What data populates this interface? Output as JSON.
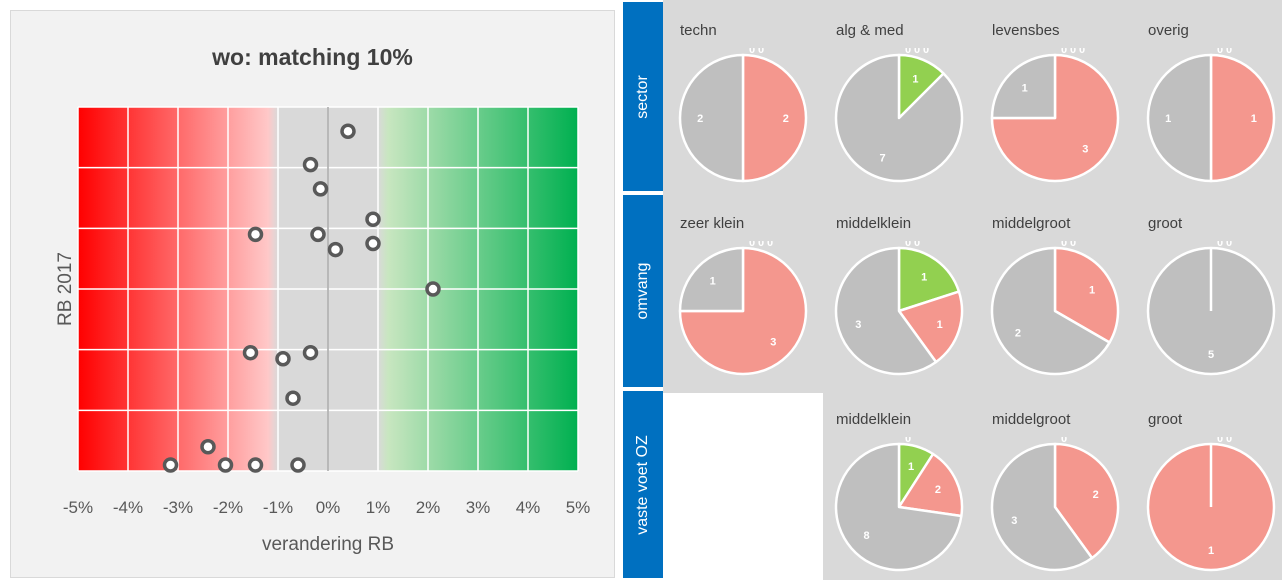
{
  "chart_data": [
    {
      "type": "scatter",
      "title": "wo: matching 10%",
      "xlabel": "verandering RB",
      "ylabel": "RB 2017",
      "xlim": [
        -5,
        5
      ],
      "x_tick_labels": [
        "-5%",
        "-4%",
        "-3%",
        "-2%",
        "-1%",
        "0%",
        "1%",
        "2%",
        "3%",
        "4%",
        "5%"
      ],
      "y_gridlines": 6,
      "background_gradient": {
        "negative_color": "#ff0000",
        "neutral_color": "#d9d9d9",
        "positive_color": "#00b050"
      },
      "points": [
        {
          "x": 0.4,
          "y": 5.6
        },
        {
          "x": -0.35,
          "y": 5.05
        },
        {
          "x": -0.15,
          "y": 4.65
        },
        {
          "x": 0.9,
          "y": 4.15
        },
        {
          "x": -1.45,
          "y": 3.9
        },
        {
          "x": -0.2,
          "y": 3.9
        },
        {
          "x": 0.9,
          "y": 3.75
        },
        {
          "x": 0.15,
          "y": 3.65
        },
        {
          "x": 2.1,
          "y": 3.0
        },
        {
          "x": -1.55,
          "y": 1.95
        },
        {
          "x": -0.9,
          "y": 1.85
        },
        {
          "x": -0.35,
          "y": 1.95
        },
        {
          "x": -0.7,
          "y": 1.2
        },
        {
          "x": -2.4,
          "y": 0.4
        },
        {
          "x": -3.15,
          "y": 0.05
        },
        {
          "x": -2.05,
          "y": 0.0
        },
        {
          "x": -1.45,
          "y": -0.02
        },
        {
          "x": -0.6,
          "y": -0.02
        }
      ]
    },
    {
      "type": "pie",
      "group": "sector",
      "charts": [
        {
          "title": "techn",
          "slices": [
            {
              "label": "2",
              "value": 2,
              "color": "#f4978e"
            },
            {
              "label": "2",
              "value": 2,
              "color": "#bfbfbf"
            }
          ],
          "zero_labels": [
            "0",
            "0"
          ]
        },
        {
          "title": "alg & med",
          "slices": [
            {
              "label": "1",
              "value": 1,
              "color": "#92d050"
            },
            {
              "label": "7",
              "value": 7,
              "color": "#bfbfbf"
            }
          ],
          "zero_labels": [
            "0",
            "0",
            "0"
          ]
        },
        {
          "title": "levensbes",
          "slices": [
            {
              "label": "3",
              "value": 3,
              "color": "#f4978e"
            },
            {
              "label": "1",
              "value": 1,
              "color": "#bfbfbf"
            }
          ],
          "zero_labels": [
            "0",
            "0",
            "0"
          ]
        },
        {
          "title": "overig",
          "slices": [
            {
              "label": "1",
              "value": 1,
              "color": "#f4978e"
            },
            {
              "label": "1",
              "value": 1,
              "color": "#bfbfbf"
            }
          ],
          "zero_labels": [
            "0",
            "0"
          ]
        }
      ]
    },
    {
      "type": "pie",
      "group": "omvang",
      "charts": [
        {
          "title": "zeer klein",
          "slices": [
            {
              "label": "3",
              "value": 3,
              "color": "#f4978e"
            },
            {
              "label": "1",
              "value": 1,
              "color": "#bfbfbf"
            }
          ],
          "zero_labels": [
            "0",
            "0",
            "0"
          ]
        },
        {
          "title": "middelklein",
          "slices": [
            {
              "label": "1",
              "value": 1,
              "color": "#92d050"
            },
            {
              "label": "1",
              "value": 1,
              "color": "#f4978e"
            },
            {
              "label": "3",
              "value": 3,
              "color": "#bfbfbf"
            }
          ],
          "zero_labels": [
            "0",
            "0"
          ]
        },
        {
          "title": "middelgroot",
          "slices": [
            {
              "label": "1",
              "value": 1,
              "color": "#f4978e"
            },
            {
              "label": "2",
              "value": 2,
              "color": "#bfbfbf"
            }
          ],
          "zero_labels": [
            "0",
            "0"
          ]
        },
        {
          "title": "groot",
          "slices": [
            {
              "label": "5",
              "value": 5,
              "color": "#bfbfbf"
            }
          ],
          "zero_labels": [
            "0",
            "0"
          ]
        }
      ]
    },
    {
      "type": "pie",
      "group": "vaste voet OZ",
      "charts": [
        {
          "title": "middelklein",
          "slices": [
            {
              "label": "1",
              "value": 1,
              "color": "#92d050"
            },
            {
              "label": "2",
              "value": 2,
              "color": "#f4978e"
            },
            {
              "label": "8",
              "value": 8,
              "color": "#bfbfbf"
            }
          ],
          "zero_labels": [
            "0"
          ]
        },
        {
          "title": "middelgroot",
          "slices": [
            {
              "label": "2",
              "value": 2,
              "color": "#f4978e"
            },
            {
              "label": "3",
              "value": 3,
              "color": "#bfbfbf"
            }
          ],
          "zero_labels": [
            "0"
          ]
        },
        {
          "title": "groot",
          "slices": [
            {
              "label": "1",
              "value": 1,
              "color": "#f4978e"
            }
          ],
          "zero_labels": [
            "0",
            "0"
          ]
        }
      ]
    }
  ]
}
